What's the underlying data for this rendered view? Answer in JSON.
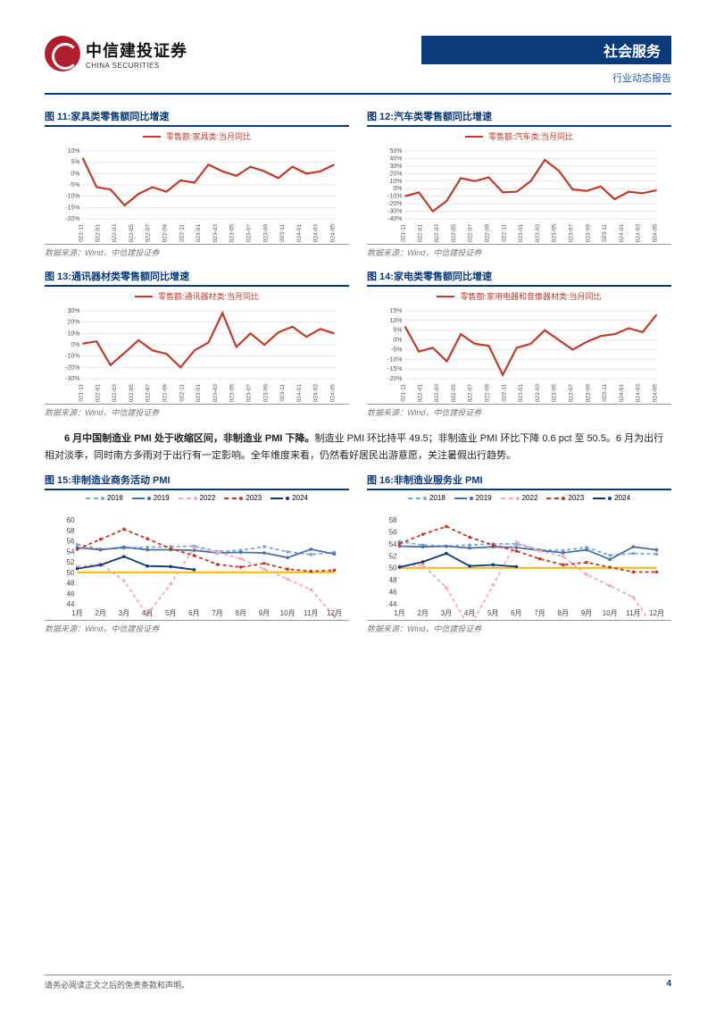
{
  "header": {
    "logo_cn": "中信建投证券",
    "logo_en": "CHINA SECURITIES",
    "banner": "社会服务",
    "sub_banner": "行业动态报告"
  },
  "charts_top": [
    {
      "title": "图 11:家具类零售额同比增速",
      "legend": "零售额:家具类:当月同比",
      "source": "数据来源：Wind，中信建投证券",
      "type": "line",
      "x_labels": [
        "2021-11",
        "2022-01",
        "2022-03",
        "2022-05",
        "2022-07",
        "2022-09",
        "2022-11",
        "2023-01",
        "2023-03",
        "2023-05",
        "2023-07",
        "2023-09",
        "2023-11",
        "2024-01",
        "2024-03",
        "2024-05"
      ],
      "y_ticks": [
        -20,
        -15,
        -10,
        -5,
        0,
        5,
        10
      ],
      "ylim": [
        -20,
        10
      ],
      "values": [
        7,
        -6,
        -7,
        -14,
        -9,
        -6,
        -8,
        -3,
        -4,
        4,
        1,
        -1,
        3,
        1,
        -2,
        3,
        0,
        1,
        4
      ],
      "line_color": "#c0392b",
      "grid_color": "#aaaaaa",
      "background_color": "#ffffff",
      "line_width": 2.2
    },
    {
      "title": "图 12:汽车类零售额同比增速",
      "legend": "零售额:汽车类:当月同比",
      "source": "数据来源：Wind，中信建投证券",
      "type": "line",
      "x_labels": [
        "2021-11",
        "2022-01",
        "2022-03",
        "2022-05",
        "2022-07",
        "2022-09",
        "2022-11",
        "2023-01",
        "2023-03",
        "2023-05",
        "2023-07",
        "2023-09",
        "2023-11",
        "2024-01",
        "2024-03",
        "2024-05"
      ],
      "y_ticks": [
        -40,
        -30,
        -20,
        -10,
        0,
        10,
        20,
        30,
        40,
        50
      ],
      "ylim": [
        -40,
        50
      ],
      "values": [
        -10,
        -5,
        -30,
        -16,
        14,
        10,
        15,
        -5,
        -4,
        10,
        38,
        24,
        -1,
        -3,
        3,
        -14,
        -4,
        -6,
        -2
      ],
      "line_color": "#c0392b",
      "grid_color": "#aaaaaa",
      "background_color": "#ffffff",
      "line_width": 2.2
    },
    {
      "title": "图 13:通讯器材类零售额同比增速",
      "legend": "零售额:通讯器材类:当月同比",
      "source": "数据来源：Wind，中信建投证券",
      "type": "line",
      "x_labels": [
        "2021-11",
        "2022-01",
        "2022-03",
        "2022-05",
        "2022-07",
        "2022-09",
        "2022-11",
        "2023-01",
        "2023-03",
        "2023-05",
        "2023-07",
        "2023-09",
        "2023-11",
        "2024-01",
        "2024-03",
        "2024-05"
      ],
      "y_ticks": [
        -30,
        -20,
        -10,
        0,
        10,
        20,
        30
      ],
      "ylim": [
        -30,
        30
      ],
      "values": [
        1,
        3,
        -18,
        -7,
        4,
        -5,
        -8,
        -20,
        -5,
        2,
        28,
        -2,
        10,
        0,
        11,
        16,
        7,
        14,
        10
      ],
      "line_color": "#c0392b",
      "grid_color": "#aaaaaa",
      "background_color": "#ffffff",
      "line_width": 2.2
    },
    {
      "title": "图 14:家电类零售额同比增速",
      "legend": "零售额:家用电器和音像器材类:当月同比",
      "source": "数据来源：Wind，中信建投证券",
      "type": "line",
      "x_labels": [
        "2021-11",
        "2022-01",
        "2022-03",
        "2022-05",
        "2022-07",
        "2022-09",
        "2022-11",
        "2023-01",
        "2023-03",
        "2023-05",
        "2023-07",
        "2023-09",
        "2023-11",
        "2024-01",
        "2024-03",
        "2024-05"
      ],
      "y_ticks": [
        -20,
        -15,
        -10,
        -5,
        0,
        5,
        10,
        15
      ],
      "ylim": [
        -20,
        15
      ],
      "values": [
        7,
        -6,
        -4,
        -11,
        3,
        -2,
        -3,
        -18,
        -4,
        -2,
        5,
        0,
        -5,
        -1,
        2,
        3,
        6,
        4,
        13
      ],
      "line_color": "#c0392b",
      "grid_color": "#aaaaaa",
      "background_color": "#ffffff",
      "line_width": 2.2
    }
  ],
  "body_paragraph": "6 月中国制造业 PMI 处于收缩区间，非制造业 PMI 下降。制造业 PMI 环比持平 49.5；非制造业 PMI 环比下降 0.6 pct 至 50.5。6 月为出行相对淡季，同时南方多雨对于出行有一定影响。全年维度来看，仍然看好居民出游意愿，关注暑假出行趋势。",
  "body_bold_prefix": "6 月中国制造业 PMI 处于收缩区间，非制造业 PMI 下降。",
  "charts_bottom": [
    {
      "title": "图 15:非制造业商务活动 PMI",
      "source": "数据来源：Wind，中信建投证券",
      "type": "multi-line",
      "x_labels": [
        "1月",
        "2月",
        "3月",
        "4月",
        "5月",
        "6月",
        "7月",
        "8月",
        "9月",
        "10月",
        "11月",
        "12月"
      ],
      "y_ticks": [
        44,
        46,
        48,
        50,
        52,
        54,
        56,
        58,
        60
      ],
      "ylim": [
        44,
        60
      ],
      "series": [
        {
          "name": "2018",
          "color": "#7ba6d6",
          "dash": true,
          "marker": "circle",
          "values": [
            55.3,
            54.4,
            54.6,
            54.8,
            54.9,
            55.0,
            54.0,
            54.2,
            54.9,
            53.9,
            53.4,
            53.8
          ]
        },
        {
          "name": "2019",
          "color": "#4a6fa5",
          "dash": false,
          "marker": "circle",
          "values": [
            54.7,
            54.3,
            54.8,
            54.3,
            54.3,
            54.2,
            53.7,
            53.8,
            53.7,
            52.8,
            54.4,
            53.5
          ]
        },
        {
          "name": "2022",
          "color": "#f4a9b8",
          "dash": true,
          "marker": "circle",
          "values": [
            51.1,
            51.6,
            48.4,
            41.9,
            47.8,
            54.7,
            53.8,
            52.6,
            50.6,
            48.7,
            46.7,
            41.6
          ]
        },
        {
          "name": "2023",
          "color": "#c0392b",
          "dash": true,
          "marker": "circle",
          "values": [
            54.4,
            56.3,
            58.2,
            56.4,
            54.5,
            53.2,
            51.5,
            51.0,
            51.7,
            50.6,
            50.2,
            50.4
          ]
        },
        {
          "name": "2024",
          "color": "#0a3a7a",
          "dash": false,
          "marker": "circle",
          "values": [
            50.7,
            51.4,
            53.0,
            51.2,
            51.1,
            50.5
          ]
        }
      ],
      "ref_line": {
        "y": 50,
        "color": "#f2b705",
        "width": 2
      },
      "grid_color": "#cccccc",
      "background_color": "#ffffff"
    },
    {
      "title": "图 16:非制造业服务业 PMI",
      "source": "数据来源：Wind，中信建投证券",
      "type": "multi-line",
      "x_labels": [
        "1月",
        "2月",
        "3月",
        "4月",
        "5月",
        "6月",
        "7月",
        "8月",
        "9月",
        "10月",
        "11月",
        "12月"
      ],
      "y_ticks": [
        44,
        46,
        48,
        50,
        52,
        54,
        56,
        58
      ],
      "ylim": [
        44,
        58
      ],
      "series": [
        {
          "name": "2018",
          "color": "#7ba6d6",
          "dash": true,
          "marker": "circle",
          "values": [
            54.4,
            53.8,
            53.6,
            53.8,
            54.0,
            54.0,
            53.0,
            52.9,
            53.4,
            52.1,
            52.4,
            52.3
          ]
        },
        {
          "name": "2019",
          "color": "#4a6fa5",
          "dash": false,
          "marker": "circle",
          "values": [
            53.6,
            53.5,
            53.6,
            53.3,
            53.5,
            53.4,
            52.9,
            52.5,
            53.0,
            51.4,
            53.5,
            53.0
          ]
        },
        {
          "name": "2022",
          "color": "#f4a9b8",
          "dash": true,
          "marker": "circle",
          "values": [
            50.3,
            50.5,
            46.7,
            40.0,
            47.1,
            54.3,
            52.8,
            51.9,
            48.9,
            47.0,
            45.1,
            39.4
          ]
        },
        {
          "name": "2023",
          "color": "#c0392b",
          "dash": true,
          "marker": "circle",
          "values": [
            54.0,
            55.6,
            56.9,
            55.1,
            53.8,
            52.8,
            51.5,
            50.5,
            50.9,
            50.1,
            49.3,
            49.3
          ]
        },
        {
          "name": "2024",
          "color": "#0a3a7a",
          "dash": false,
          "marker": "circle",
          "values": [
            50.1,
            51.0,
            52.4,
            50.3,
            50.5,
            50.2
          ]
        }
      ],
      "ref_line": {
        "y": 50,
        "color": "#f2b705",
        "width": 2
      },
      "grid_color": "#cccccc",
      "background_color": "#ffffff"
    }
  ],
  "footer": {
    "disclaimer": "请务必阅读正文之后的免责条款和声明。",
    "page": "4"
  },
  "palette": {
    "brand_blue": "#0a3a7a",
    "brand_red": "#b01e2e",
    "line_red": "#c0392b",
    "ref_yellow": "#f2b705"
  }
}
